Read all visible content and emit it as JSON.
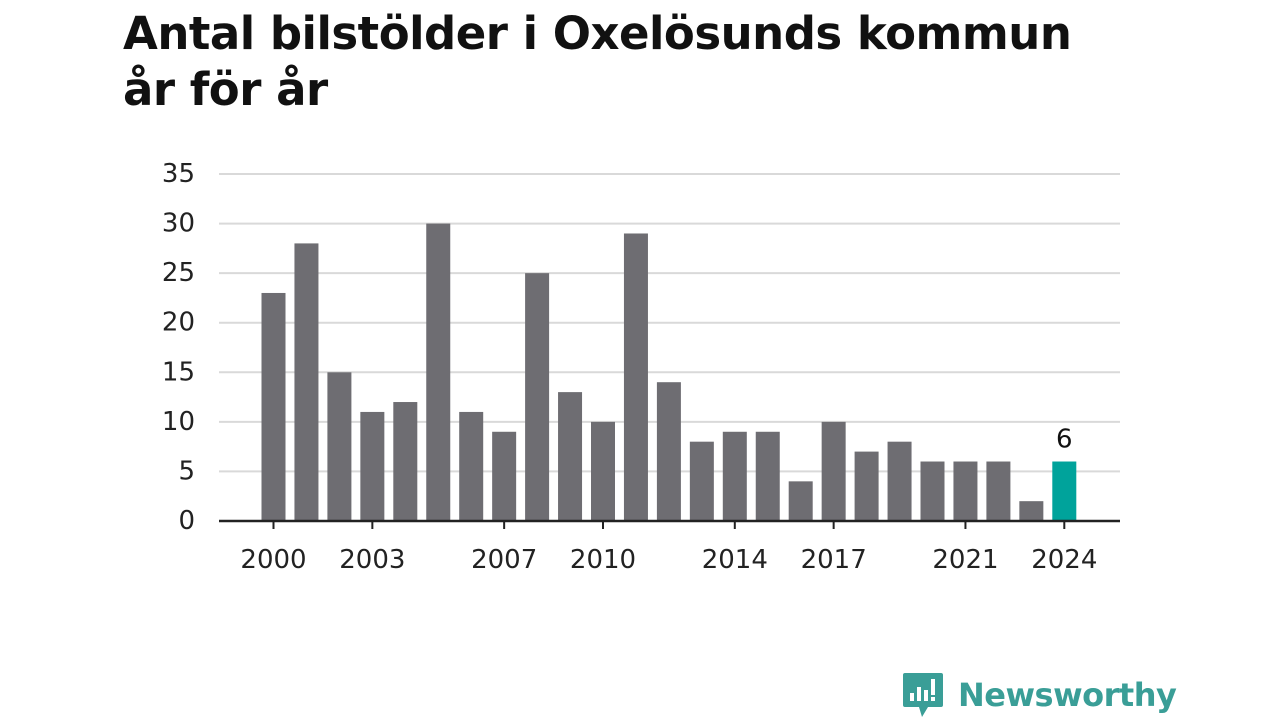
{
  "colors": {
    "bar": "#6e6d72",
    "highlight": "#00a39b",
    "grid": "#d9d9d9",
    "axis": "#222222",
    "brand": "#3a9e97"
  },
  "brand": {
    "name": "Newsworthy",
    "icon": "newsworthy-logo-icon"
  },
  "chart_data": {
    "type": "bar",
    "title": "Antal bilstölder i Oxelösunds kommun år för år",
    "title_lines": [
      "Antal bilstölder i Oxelösunds kommun",
      "år för år"
    ],
    "xlabel": "",
    "ylabel": "",
    "categories": [
      "2000",
      "2001",
      "2002",
      "2003",
      "2004",
      "2005",
      "2006",
      "2007",
      "2008",
      "2009",
      "2010",
      "2011",
      "2012",
      "2013",
      "2014",
      "2015",
      "2016",
      "2017",
      "2018",
      "2019",
      "2020",
      "2021",
      "2022",
      "2023",
      "2024"
    ],
    "values": [
      23,
      28,
      15,
      11,
      12,
      30,
      11,
      9,
      25,
      13,
      10,
      29,
      14,
      8,
      9,
      9,
      4,
      10,
      7,
      8,
      6,
      6,
      6,
      2,
      6
    ],
    "x_tick_labels": [
      "2000",
      "2003",
      "2007",
      "2010",
      "2014",
      "2017",
      "2021",
      "2024"
    ],
    "y_ticks": [
      0,
      5,
      10,
      15,
      20,
      25,
      30,
      35
    ],
    "ylim": [
      0,
      35
    ],
    "grid": true,
    "legend": "none",
    "highlight_category": "2024",
    "data_labels": [
      {
        "category": "2024",
        "text": "6"
      }
    ]
  }
}
